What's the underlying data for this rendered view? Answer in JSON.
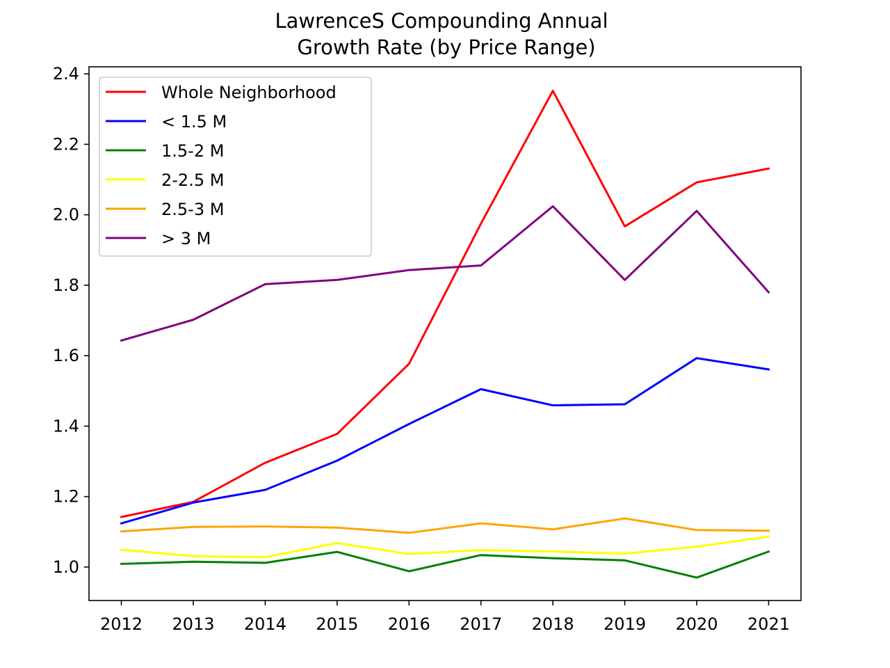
{
  "chart_data": {
    "type": "line",
    "title_lines": [
      "LawrenceS Compounding Annual",
      "Growth Rate (by Price Range)"
    ],
    "xlabel": "",
    "ylabel": "",
    "x": [
      2012,
      2013,
      2014,
      2015,
      2016,
      2017,
      2018,
      2019,
      2020,
      2021
    ],
    "x_ticks": [
      "2012",
      "2013",
      "2014",
      "2015",
      "2016",
      "2017",
      "2018",
      "2019",
      "2020",
      "2021"
    ],
    "y_ticks": [
      "1.0",
      "1.2",
      "1.4",
      "1.6",
      "1.8",
      "2.0",
      "2.2",
      "2.4"
    ],
    "xlim": [
      2011.55,
      2021.45
    ],
    "ylim": [
      0.905,
      2.42
    ],
    "grid": false,
    "legend_position": "top-left",
    "series": [
      {
        "name": "Whole Neighborhood",
        "color": "#ff0000",
        "values": [
          1.142,
          1.185,
          1.296,
          1.378,
          1.577,
          1.975,
          2.352,
          1.967,
          2.092,
          2.131
        ]
      },
      {
        "name": "< 1.5 M",
        "color": "#0000ff",
        "values": [
          1.124,
          1.183,
          1.219,
          1.302,
          1.406,
          1.505,
          1.459,
          1.462,
          1.593,
          1.561
        ]
      },
      {
        "name": "1.5-2 M",
        "color": "#008000",
        "values": [
          1.009,
          1.015,
          1.012,
          1.043,
          0.988,
          1.034,
          1.025,
          1.019,
          0.97,
          1.044
        ]
      },
      {
        "name": "2-2.5 M",
        "color": "#ffff00",
        "values": [
          1.049,
          1.031,
          1.028,
          1.068,
          1.037,
          1.048,
          1.044,
          1.038,
          1.058,
          1.086
        ]
      },
      {
        "name": "2.5-3 M",
        "color": "#ffa500",
        "values": [
          1.101,
          1.114,
          1.115,
          1.112,
          1.097,
          1.124,
          1.107,
          1.138,
          1.105,
          1.103
        ]
      },
      {
        "name": "> 3 M",
        "color": "#800080",
        "values": [
          1.643,
          1.702,
          1.803,
          1.815,
          1.843,
          1.856,
          2.024,
          1.815,
          2.011,
          1.78
        ]
      }
    ]
  }
}
